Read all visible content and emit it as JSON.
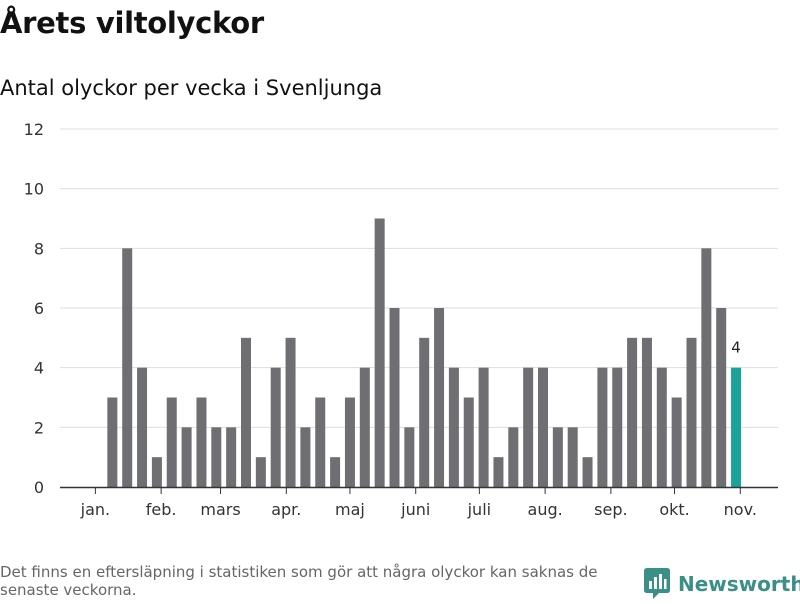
{
  "title": "Årets viltolyckor",
  "subtitle": "Antal olyckor per vecka i Svenljunga",
  "footnote": "Det finns en eftersläpning i statistiken som gör att några olyckor kan saknas de senaste veckorna.",
  "brand": {
    "name": "Newsworthy",
    "icon": "newsworthy-logo-icon"
  },
  "colors": {
    "bar": "#6f6e73",
    "highlight": "#1aa398",
    "grid": "#dddddd",
    "axis": "#333333",
    "brand": "#3a8f86"
  },
  "chart_data": {
    "type": "bar",
    "x_start": "2023-01-02",
    "x_step_days": 7,
    "values": [
      0,
      3,
      8,
      4,
      1,
      3,
      2,
      3,
      2,
      2,
      5,
      1,
      4,
      5,
      2,
      3,
      1,
      3,
      4,
      9,
      6,
      2,
      5,
      6,
      4,
      3,
      4,
      1,
      2,
      4,
      4,
      2,
      2,
      1,
      4,
      4,
      5,
      5,
      4,
      3,
      5,
      8,
      6,
      4
    ],
    "highlight_index": 43,
    "highlight_label": "4",
    "ylim": [
      0,
      12
    ],
    "yticks": [
      0,
      2,
      4,
      6,
      8,
      10,
      12
    ],
    "month_labels": [
      {
        "label": "jan.",
        "date": "2023-01-01"
      },
      {
        "label": "feb.",
        "date": "2023-02-01"
      },
      {
        "label": "mars",
        "date": "2023-03-01"
      },
      {
        "label": "apr.",
        "date": "2023-04-01"
      },
      {
        "label": "maj",
        "date": "2023-05-01"
      },
      {
        "label": "juni",
        "date": "2023-06-01"
      },
      {
        "label": "juli",
        "date": "2023-07-01"
      },
      {
        "label": "aug.",
        "date": "2023-08-01"
      },
      {
        "label": "sep.",
        "date": "2023-09-01"
      },
      {
        "label": "okt.",
        "date": "2023-10-01"
      },
      {
        "label": "nov.",
        "date": "2023-11-01"
      }
    ],
    "xlabel": "",
    "ylabel": "",
    "grid": true,
    "legend": "none"
  }
}
